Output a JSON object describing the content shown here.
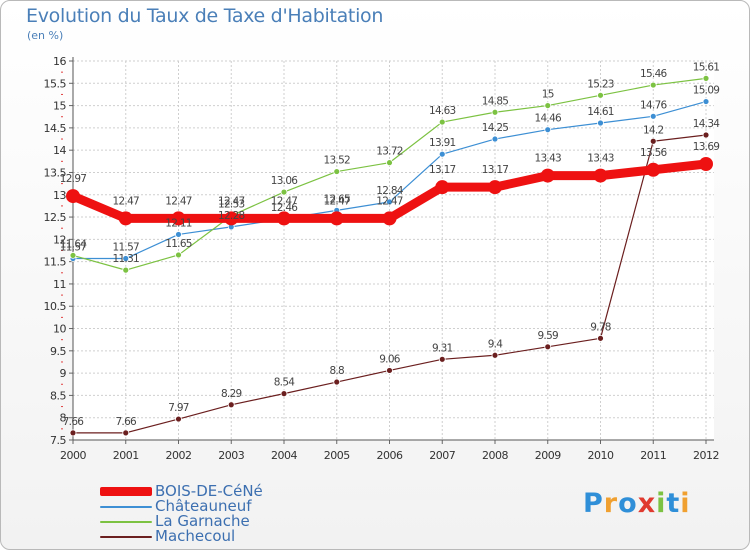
{
  "title": "Evolution du Taux de Taxe d'Habitation",
  "unit": "(en %)",
  "logo": {
    "text": "Proxiti",
    "letters": [
      "P",
      "r",
      "o",
      "x",
      "i",
      "t",
      "i"
    ],
    "colors": [
      "#2f8fd8",
      "#f0a030",
      "#2f8fd8",
      "#e03a2f",
      "#7cc242",
      "#2f8fd8",
      "#f0a030"
    ]
  },
  "chart_data": {
    "type": "line",
    "x": [
      "2000",
      "2001",
      "2002",
      "2003",
      "2004",
      "2005",
      "2006",
      "2007",
      "2008",
      "2009",
      "2010",
      "2011",
      "2012"
    ],
    "ylim": [
      7.5,
      16
    ],
    "yticks": [
      "7.5",
      "8",
      "8.5",
      "9",
      "9.5",
      "10",
      "10.5",
      "11",
      "11.5",
      "12",
      "12.5",
      "13",
      "13.5",
      "14",
      "14.5",
      "15",
      "15.5",
      "16"
    ],
    "grid": true,
    "legend_position": "bottom-left",
    "series": [
      {
        "name": "Machecoul",
        "color": "#6b1f1f",
        "values": [
          7.66,
          7.66,
          7.97,
          8.29,
          8.54,
          8.8,
          9.06,
          9.31,
          9.4,
          9.59,
          9.78,
          14.2,
          14.34
        ],
        "labels": [
          "7.66",
          "7.66",
          "7.97",
          "8.29",
          "8.54",
          "8.8",
          "9.06",
          "9.31",
          "9.4",
          "9.59",
          "9.78",
          "14.2",
          "14.34"
        ]
      },
      {
        "name": "Châteauneuf",
        "color": "#3d8fd4",
        "values": [
          11.57,
          11.57,
          12.11,
          12.28,
          12.46,
          12.65,
          12.84,
          13.91,
          14.25,
          14.46,
          14.61,
          14.76,
          15.09
        ],
        "labels": [
          "11.57",
          "11.57",
          "12.11",
          "12.28",
          "12.46",
          "12.65",
          "12.84",
          "13.91",
          "14.25",
          "14.46",
          "14.61",
          "14.76",
          "15.09"
        ]
      },
      {
        "name": "La Garnache",
        "color": "#7cc242",
        "values": [
          11.64,
          11.31,
          11.65,
          12.53,
          13.06,
          13.52,
          13.72,
          14.63,
          14.85,
          15,
          15.23,
          15.46,
          15.61
        ],
        "labels": [
          "11.64",
          "11.31",
          "11.65",
          "12.53",
          "13.06",
          "13.52",
          "13.72",
          "14.63",
          "14.85",
          "15",
          "15.23",
          "15.46",
          "15.61"
        ]
      },
      {
        "name": "BOIS-DE-CéNé",
        "color": "#ee1111",
        "values": [
          12.97,
          12.47,
          12.47,
          12.47,
          12.47,
          12.47,
          12.47,
          13.17,
          13.17,
          13.43,
          13.43,
          13.56,
          13.69
        ],
        "labels": [
          "12.97",
          "12.47",
          "12.47",
          "12.47",
          "12.47",
          "12.47",
          "12.47",
          "13.17",
          "13.17",
          "13.43",
          "13.43",
          "13.56",
          "13.69"
        ]
      }
    ]
  }
}
